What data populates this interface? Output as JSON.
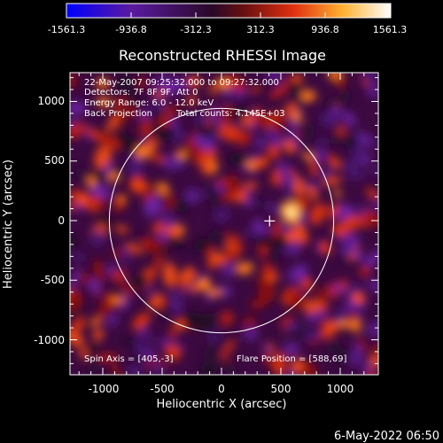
{
  "colorbar": {
    "ticks": [
      "-1561.3",
      "-936.8",
      "-312.3",
      "312.3",
      "936.8",
      "1561.3"
    ],
    "colors": [
      "#0000ff",
      "#5a1aa0",
      "#3a0a3a",
      "#8a1a10",
      "#ff6a10",
      "#ffd850",
      "#ffffff"
    ]
  },
  "plot": {
    "title": "Reconstructed RHESSI Image",
    "xlabel": "Heliocentric X (arcsec)",
    "ylabel": "Heliocentric Y (arcsec)",
    "x_ticks": [
      "-1000",
      "-500",
      "0",
      "500",
      "1000"
    ],
    "y_ticks": [
      "1000",
      "500",
      "0",
      "-500",
      "-1000"
    ],
    "xlim": [
      -1280,
      1280
    ],
    "ylim": [
      -1250,
      1250
    ]
  },
  "annotations": {
    "time_range": "22-May-2007 09:25:32.000 to 09:27:32.000",
    "detectors": "Detectors: 7F 8F 9F, Att 0",
    "energy": "Energy Range: 6.0 - 12.0 keV",
    "method": "Back Projection",
    "counts": "Total counts: 4.145E+03",
    "spin_axis": "Spin Axis = [405,-3]",
    "flare_position": "Flare Position = [588,69]"
  },
  "solar_limb_radius_arcsec": 945,
  "marker_arcsec": [
    405,
    -3
  ],
  "hotspot_arcsec": [
    588,
    69
  ],
  "footer_timestamp": "6-May-2022 06:50"
}
